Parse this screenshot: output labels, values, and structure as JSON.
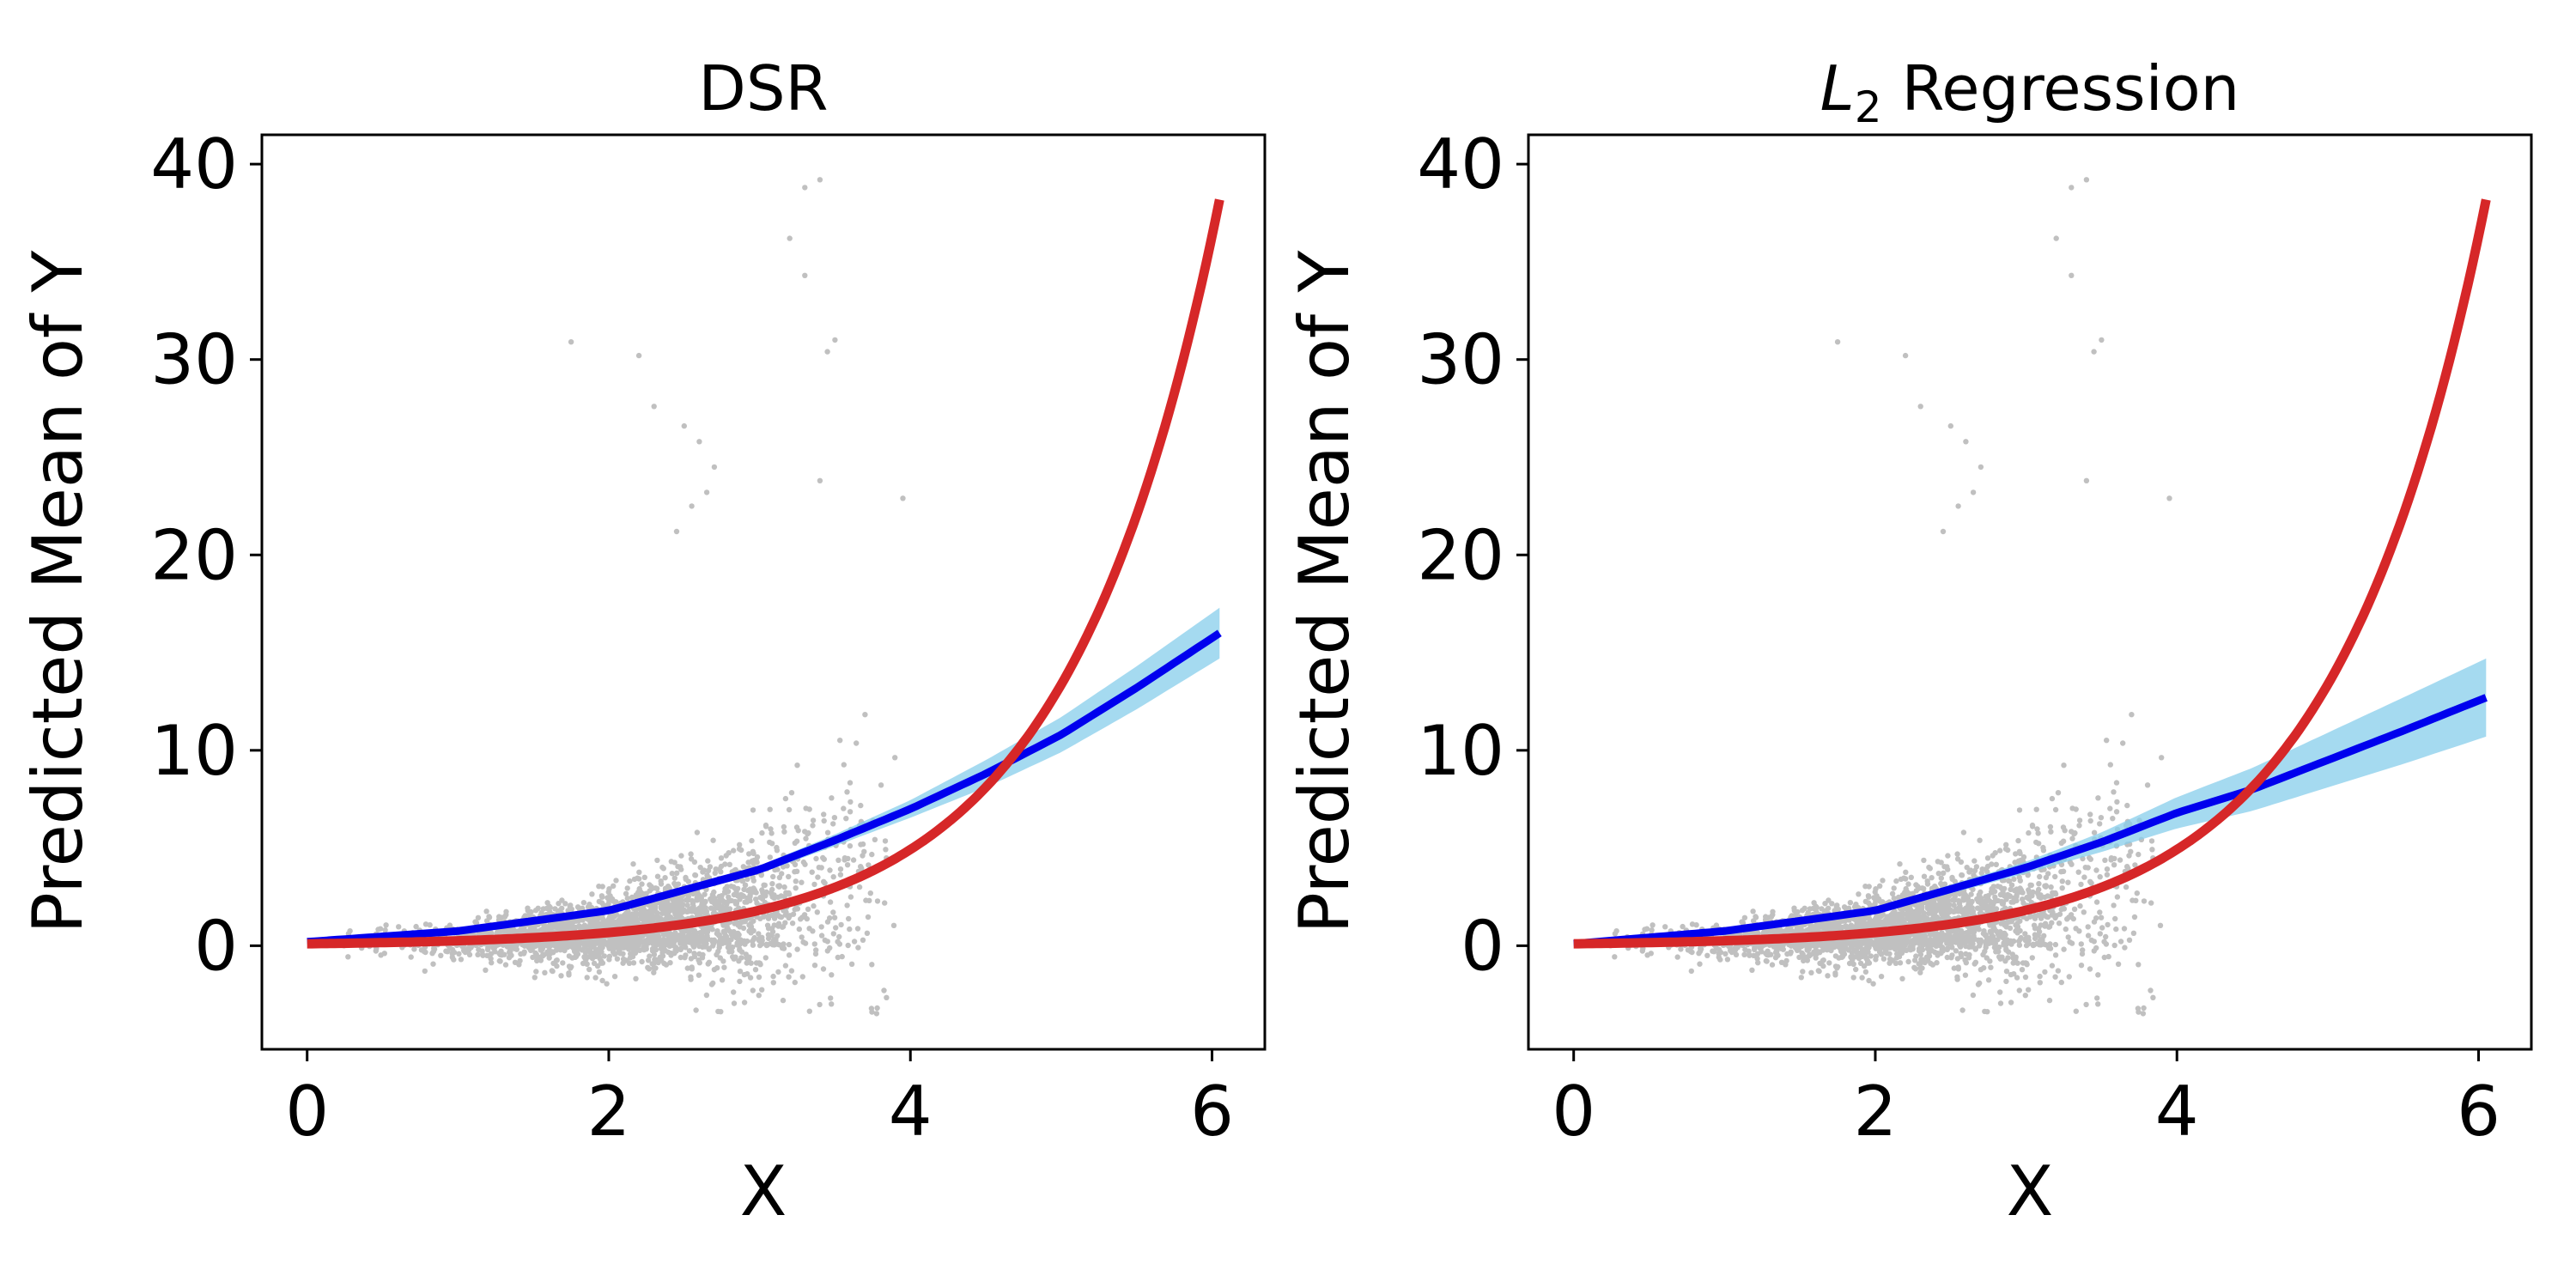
{
  "chart_data": [
    {
      "type": "scatter",
      "title": "DSR",
      "title_parts": {
        "main": "DSR",
        "subscript": "",
        "suffix": ""
      },
      "xlabel": "X",
      "ylabel": "Predicted Mean of Y",
      "xlim": [
        -0.3,
        6.35
      ],
      "ylim": [
        -5.3,
        41.5
      ],
      "xticks": [
        0,
        2,
        4,
        6
      ],
      "yticks": [
        0,
        10,
        20,
        30,
        40
      ],
      "grid": false,
      "colors": {
        "scatter": "#c0c0c0",
        "true_mean": "#d62728",
        "predicted_mean": "#0000ee",
        "band": "#87ceeb"
      },
      "curves": {
        "true_mean": {
          "form": "0.09*(exp(x)-1)+0.1",
          "x_range": [
            0,
            6.05
          ]
        },
        "predicted_mean": {
          "x": [
            0,
            1,
            2,
            3,
            3.5,
            4,
            4.5,
            5,
            5.5,
            6.05
          ],
          "y": [
            0.2,
            0.75,
            1.8,
            3.9,
            5.4,
            7.0,
            8.8,
            10.8,
            13.2,
            16.0
          ],
          "band_halfwidth": [
            0.1,
            0.1,
            0.15,
            0.2,
            0.3,
            0.45,
            0.7,
            0.9,
            1.1,
            1.3
          ]
        }
      },
      "scatter_summary": {
        "x_range": [
          0.2,
          3.9
        ],
        "n_points": 2600,
        "outliers": [
          [
            3.2,
            36.2
          ],
          [
            3.4,
            39.2
          ],
          [
            3.3,
            38.8
          ],
          [
            3.3,
            34.3
          ],
          [
            3.5,
            31
          ],
          [
            3.45,
            30.4
          ],
          [
            1.75,
            30.9
          ],
          [
            2.2,
            30.2
          ],
          [
            2.3,
            27.6
          ],
          [
            2.5,
            26.6
          ],
          [
            2.6,
            25.8
          ],
          [
            2.7,
            24.5
          ],
          [
            2.65,
            23.2
          ],
          [
            3.4,
            23.8
          ],
          [
            3.95,
            22.9
          ],
          [
            2.55,
            22.5
          ],
          [
            2.45,
            21.2
          ]
        ]
      }
    },
    {
      "type": "scatter",
      "title": "L2 Regression",
      "title_parts": {
        "main": "L",
        "subscript": "2",
        "suffix": " Regression"
      },
      "xlabel": "X",
      "ylabel": "Predicted Mean of Y",
      "xlim": [
        -0.3,
        6.35
      ],
      "ylim": [
        -5.3,
        41.5
      ],
      "xticks": [
        0,
        2,
        4,
        6
      ],
      "yticks": [
        0,
        10,
        20,
        30,
        40
      ],
      "grid": false,
      "colors": {
        "scatter": "#c0c0c0",
        "true_mean": "#d62728",
        "predicted_mean": "#0000ee",
        "band": "#87ceeb"
      },
      "curves": {
        "true_mean": {
          "form": "0.09*(exp(x)-1)+0.1",
          "x_range": [
            0,
            6.05
          ]
        },
        "predicted_mean": {
          "x": [
            0,
            1,
            2,
            3,
            3.5,
            4,
            4.5,
            5,
            5.5,
            6.05
          ],
          "y": [
            0.1,
            0.75,
            1.8,
            4.0,
            5.3,
            6.8,
            8.0,
            9.5,
            11.0,
            12.7
          ],
          "band_halfwidth": [
            0.1,
            0.1,
            0.15,
            0.3,
            0.5,
            0.8,
            1.1,
            1.4,
            1.7,
            2.0
          ]
        }
      },
      "scatter_summary": {
        "x_range": [
          0.2,
          3.9
        ],
        "n_points": 2600,
        "outliers": [
          [
            3.2,
            36.2
          ],
          [
            3.4,
            39.2
          ],
          [
            3.3,
            38.8
          ],
          [
            3.3,
            34.3
          ],
          [
            3.5,
            31
          ],
          [
            3.45,
            30.4
          ],
          [
            1.75,
            30.9
          ],
          [
            2.2,
            30.2
          ],
          [
            2.3,
            27.6
          ],
          [
            2.5,
            26.6
          ],
          [
            2.6,
            25.8
          ],
          [
            2.7,
            24.5
          ],
          [
            2.65,
            23.2
          ],
          [
            3.4,
            23.8
          ],
          [
            3.95,
            22.9
          ],
          [
            2.55,
            22.5
          ],
          [
            2.45,
            21.2
          ]
        ]
      }
    }
  ]
}
